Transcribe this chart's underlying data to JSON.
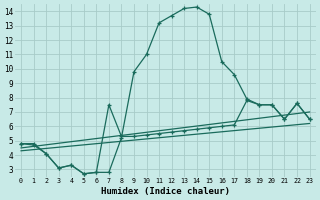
{
  "xlabel": "Humidex (Indice chaleur)",
  "bg_color": "#c8eae7",
  "grid_color": "#a8ccc8",
  "line_color": "#1a6b5c",
  "xlim": [
    -0.5,
    23.5
  ],
  "ylim": [
    2.5,
    14.5
  ],
  "xticks": [
    0,
    1,
    2,
    3,
    4,
    5,
    6,
    7,
    8,
    9,
    10,
    11,
    12,
    13,
    14,
    15,
    16,
    17,
    18,
    19,
    20,
    21,
    22,
    23
  ],
  "yticks": [
    3,
    4,
    5,
    6,
    7,
    8,
    9,
    10,
    11,
    12,
    13,
    14
  ],
  "curve_arch_x": [
    0,
    1,
    2,
    3,
    4,
    5,
    6,
    7,
    8,
    9,
    10,
    11,
    12,
    13,
    14,
    15,
    16,
    17,
    18,
    19,
    20,
    21,
    22,
    23
  ],
  "curve_arch_y": [
    4.8,
    4.8,
    4.1,
    3.1,
    3.3,
    2.7,
    2.8,
    2.8,
    5.2,
    9.8,
    11.0,
    13.2,
    13.7,
    14.2,
    14.3,
    13.8,
    10.5,
    9.6,
    7.9,
    7.5,
    7.5,
    6.5,
    7.6,
    6.5
  ],
  "curve_dip_x": [
    0,
    1,
    2,
    3,
    4,
    5,
    6,
    7,
    8,
    9,
    10,
    11,
    12,
    13,
    14,
    15,
    16,
    17,
    18,
    19,
    20,
    21,
    22,
    23
  ],
  "curve_dip_y": [
    4.8,
    4.7,
    4.1,
    3.1,
    3.3,
    2.7,
    2.8,
    7.5,
    5.3,
    5.3,
    5.4,
    5.5,
    5.6,
    5.7,
    5.8,
    5.9,
    6.0,
    6.1,
    7.8,
    7.5,
    7.5,
    6.5,
    7.6,
    6.5
  ],
  "line1_x": [
    0,
    23
  ],
  "line1_y": [
    4.5,
    7.0
  ],
  "line2_x": [
    0,
    23
  ],
  "line2_y": [
    4.3,
    6.2
  ]
}
